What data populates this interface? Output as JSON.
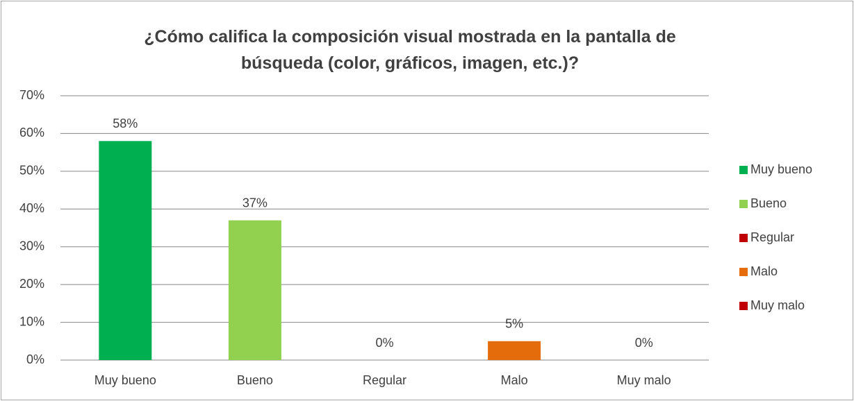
{
  "chart_data": {
    "type": "bar",
    "title": "¿Cómo califica la composición visual mostrada en la pantalla de búsqueda (color, gráficos, imagen, etc.)?",
    "categories": [
      "Muy bueno",
      "Bueno",
      "Regular",
      "Malo",
      "Muy malo"
    ],
    "values": [
      58,
      37,
      0,
      5,
      0
    ],
    "value_labels": [
      "58%",
      "37%",
      "0%",
      "5%",
      "0%"
    ],
    "colors": [
      "#00b050",
      "#92d050",
      "#c00000",
      "#e46c0a",
      "#c00000"
    ],
    "ylim": [
      0,
      70
    ],
    "yticks": [
      {
        "value": 0,
        "label": "0%"
      },
      {
        "value": 10,
        "label": "10%"
      },
      {
        "value": 20,
        "label": "20%"
      },
      {
        "value": 30,
        "label": "30%"
      },
      {
        "value": 40,
        "label": "40%"
      },
      {
        "value": 50,
        "label": "50%"
      },
      {
        "value": 60,
        "label": "60%"
      },
      {
        "value": 70,
        "label": "70%"
      }
    ],
    "grid": true,
    "legend": "right"
  }
}
